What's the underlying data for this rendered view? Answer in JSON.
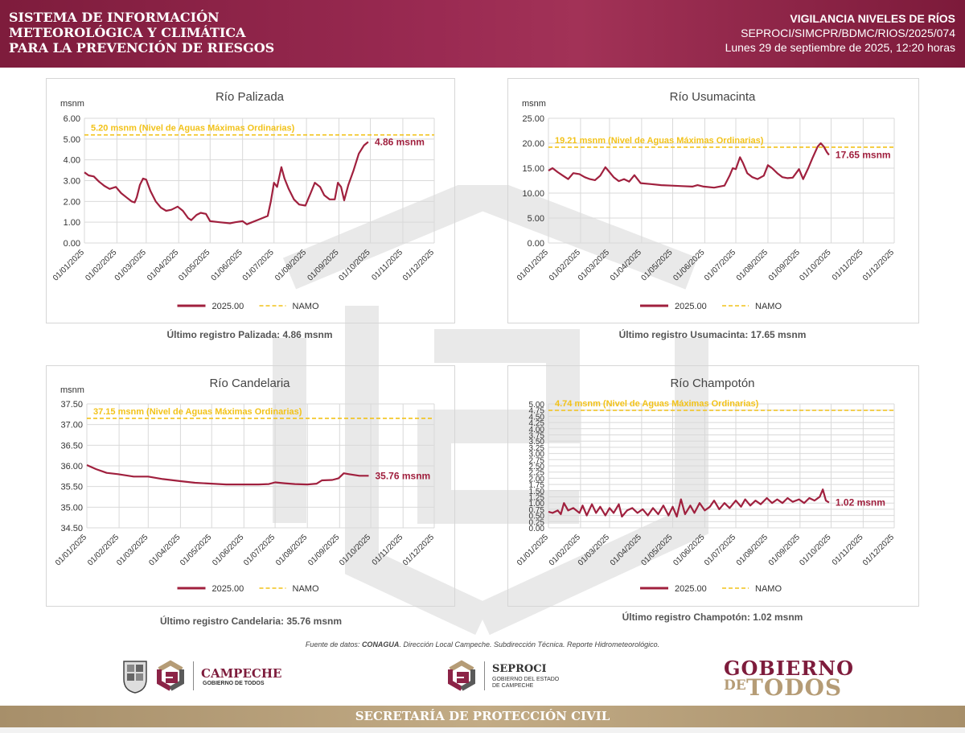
{
  "header": {
    "title_lines": [
      "SISTEMA DE INFORMACIÓN",
      "METEOROLÓGICA Y CLIMÁTICA",
      "PARA LA PREVENCIÓN DE RIESGOS"
    ],
    "report_title": "VIGILANCIA NIVELES DE RÍOS",
    "report_code": "SEPROCI/SIMCPR/BDMC/RIOS/2025/074",
    "report_date": "Lunes 29 de septiembre de 2025, 12:20 horas"
  },
  "colors": {
    "series": "#a0203e",
    "namo": "#f2c219",
    "header": "#8c2347",
    "footer": "#b59c76"
  },
  "chart_data": [
    {
      "type": "line",
      "title": "Río Palizada",
      "ylabel": "msnm",
      "ylim": [
        0,
        6
      ],
      "yticks": [
        0,
        1,
        2,
        3,
        4,
        5,
        6
      ],
      "decimals": 2,
      "x_ticks": [
        "01/01/2025",
        "01/02/2025",
        "01/03/2025",
        "01/04/2025",
        "01/05/2025",
        "01/06/2025",
        "01/07/2025",
        "01/08/2025",
        "01/09/2025",
        "01/10/2025",
        "01/11/2025",
        "01/12/2025"
      ],
      "namo": 5.2,
      "namo_label": "5.20 msnm  (Nivel de Aguas Máximas Ordinarias)",
      "last_label": "4.86 msnm",
      "caption": "Último registro Palizada: 4.86 msnm",
      "legend": [
        "2025.00",
        "NAMO"
      ],
      "series": [
        {
          "name": "2025.00",
          "points": [
            [
              "01/01/2025",
              3.4
            ],
            [
              "05/01/2025",
              3.25
            ],
            [
              "10/01/2025",
              3.2
            ],
            [
              "15/01/2025",
              2.95
            ],
            [
              "20/01/2025",
              2.75
            ],
            [
              "25/01/2025",
              2.6
            ],
            [
              "31/01/2025",
              2.7
            ],
            [
              "05/02/2025",
              2.4
            ],
            [
              "10/02/2025",
              2.2
            ],
            [
              "15/02/2025",
              2.0
            ],
            [
              "18/02/2025",
              1.95
            ],
            [
              "20/02/2025",
              2.2
            ],
            [
              "23/02/2025",
              2.8
            ],
            [
              "26/02/2025",
              3.1
            ],
            [
              "01/03/2025",
              3.05
            ],
            [
              "05/03/2025",
              2.5
            ],
            [
              "10/03/2025",
              2.0
            ],
            [
              "15/03/2025",
              1.7
            ],
            [
              "20/03/2025",
              1.55
            ],
            [
              "25/03/2025",
              1.6
            ],
            [
              "31/03/2025",
              1.75
            ],
            [
              "05/04/2025",
              1.55
            ],
            [
              "10/04/2025",
              1.2
            ],
            [
              "13/04/2025",
              1.1
            ],
            [
              "18/04/2025",
              1.35
            ],
            [
              "22/04/2025",
              1.45
            ],
            [
              "27/04/2025",
              1.4
            ],
            [
              "01/05/2025",
              1.05
            ],
            [
              "10/05/2025",
              1.0
            ],
            [
              "20/05/2025",
              0.95
            ],
            [
              "25/05/2025",
              1.0
            ],
            [
              "01/06/2025",
              1.05
            ],
            [
              "05/06/2025",
              0.9
            ],
            [
              "10/06/2025",
              1.0
            ],
            [
              "15/06/2025",
              1.1
            ],
            [
              "20/06/2025",
              1.2
            ],
            [
              "25/06/2025",
              1.3
            ],
            [
              "28/06/2025",
              2.0
            ],
            [
              "01/07/2025",
              2.9
            ],
            [
              "04/07/2025",
              2.7
            ],
            [
              "08/07/2025",
              3.65
            ],
            [
              "11/07/2025",
              3.1
            ],
            [
              "15/07/2025",
              2.6
            ],
            [
              "20/07/2025",
              2.1
            ],
            [
              "25/07/2025",
              1.85
            ],
            [
              "31/07/2025",
              1.8
            ],
            [
              "05/08/2025",
              2.4
            ],
            [
              "09/08/2025",
              2.9
            ],
            [
              "14/08/2025",
              2.7
            ],
            [
              "18/08/2025",
              2.3
            ],
            [
              "23/08/2025",
              2.1
            ],
            [
              "28/08/2025",
              2.1
            ],
            [
              "31/08/2025",
              2.9
            ],
            [
              "03/09/2025",
              2.7
            ],
            [
              "06/09/2025",
              2.05
            ],
            [
              "10/09/2025",
              2.8
            ],
            [
              "15/09/2025",
              3.5
            ],
            [
              "20/09/2025",
              4.3
            ],
            [
              "25/09/2025",
              4.7
            ],
            [
              "29/09/2025",
              4.86
            ]
          ]
        }
      ]
    },
    {
      "type": "line",
      "title": "Río Usumacinta",
      "ylabel": "msnm",
      "ylim": [
        0,
        25
      ],
      "yticks": [
        0,
        5,
        10,
        15,
        20,
        25
      ],
      "decimals": 2,
      "x_ticks": [
        "01/01/2025",
        "01/02/2025",
        "01/03/2025",
        "01/04/2025",
        "01/05/2025",
        "01/06/2025",
        "01/07/2025",
        "01/08/2025",
        "01/09/2025",
        "01/10/2025",
        "01/11/2025",
        "01/12/2025"
      ],
      "namo": 19.21,
      "namo_label": "19.21 msnm  (Nivel de Aguas Máximas Ordinarias)",
      "last_label": "17.65 msnm",
      "caption": "Último registro Usumacinta: 17.65 msnm",
      "legend": [
        "2025.00",
        "NAMO"
      ],
      "series": [
        {
          "name": "2025.00",
          "points": [
            [
              "01/01/2025",
              14.5
            ],
            [
              "05/01/2025",
              15.0
            ],
            [
              "10/01/2025",
              14.2
            ],
            [
              "15/01/2025",
              13.5
            ],
            [
              "20/01/2025",
              12.8
            ],
            [
              "25/01/2025",
              14.0
            ],
            [
              "31/01/2025",
              13.8
            ],
            [
              "05/02/2025",
              13.2
            ],
            [
              "10/02/2025",
              12.8
            ],
            [
              "15/02/2025",
              12.6
            ],
            [
              "20/02/2025",
              13.5
            ],
            [
              "25/02/2025",
              15.2
            ],
            [
              "01/03/2025",
              14.2
            ],
            [
              "05/03/2025",
              13.2
            ],
            [
              "10/03/2025",
              12.4
            ],
            [
              "15/03/2025",
              12.8
            ],
            [
              "20/03/2025",
              12.3
            ],
            [
              "25/03/2025",
              13.6
            ],
            [
              "31/03/2025",
              12.0
            ],
            [
              "10/04/2025",
              11.8
            ],
            [
              "20/04/2025",
              11.6
            ],
            [
              "30/04/2025",
              11.5
            ],
            [
              "10/05/2025",
              11.4
            ],
            [
              "20/05/2025",
              11.3
            ],
            [
              "25/05/2025",
              11.6
            ],
            [
              "31/05/2025",
              11.3
            ],
            [
              "10/06/2025",
              11.1
            ],
            [
              "20/06/2025",
              11.5
            ],
            [
              "25/06/2025",
              13.5
            ],
            [
              "28/06/2025",
              15.0
            ],
            [
              "01/07/2025",
              14.8
            ],
            [
              "05/07/2025",
              17.2
            ],
            [
              "08/07/2025",
              16.0
            ],
            [
              "12/07/2025",
              14.0
            ],
            [
              "17/07/2025",
              13.2
            ],
            [
              "22/07/2025",
              12.8
            ],
            [
              "28/07/2025",
              13.5
            ],
            [
              "01/08/2025",
              15.6
            ],
            [
              "05/08/2025",
              15.0
            ],
            [
              "10/08/2025",
              14.0
            ],
            [
              "15/08/2025",
              13.2
            ],
            [
              "20/08/2025",
              13.0
            ],
            [
              "25/08/2025",
              13.1
            ],
            [
              "31/08/2025",
              14.8
            ],
            [
              "04/09/2025",
              12.8
            ],
            [
              "09/09/2025",
              15.0
            ],
            [
              "13/09/2025",
              17.0
            ],
            [
              "18/09/2025",
              19.3
            ],
            [
              "21/09/2025",
              20.0
            ],
            [
              "24/09/2025",
              19.3
            ],
            [
              "27/09/2025",
              18.2
            ],
            [
              "29/09/2025",
              17.65
            ]
          ]
        }
      ]
    },
    {
      "type": "line",
      "title": "Río Candelaria",
      "ylabel": "msnm",
      "ylim": [
        34.5,
        37.5
      ],
      "yticks": [
        34.5,
        35,
        35.5,
        36,
        36.5,
        37,
        37.5
      ],
      "decimals": 2,
      "x_ticks": [
        "01/01/2025",
        "01/02/2025",
        "01/03/2025",
        "01/04/2025",
        "01/05/2025",
        "01/06/2025",
        "01/07/2025",
        "01/08/2025",
        "01/09/2025",
        "01/10/2025",
        "01/11/2025",
        "01/12/2025"
      ],
      "namo": 37.15,
      "namo_label": "37.15 msnm  (Nivel de Aguas Máximas Ordinarias)",
      "last_label": "35.76 msnm",
      "caption": "Último registro Candelaria: 35.76 msnm",
      "legend": [
        "2025.00",
        "NAMO"
      ],
      "series": [
        {
          "name": "2025.00",
          "points": [
            [
              "01/01/2025",
              36.02
            ],
            [
              "10/01/2025",
              35.92
            ],
            [
              "20/01/2025",
              35.83
            ],
            [
              "31/01/2025",
              35.8
            ],
            [
              "15/02/2025",
              35.74
            ],
            [
              "01/03/2025",
              35.74
            ],
            [
              "15/03/2025",
              35.68
            ],
            [
              "01/04/2025",
              35.63
            ],
            [
              "15/04/2025",
              35.59
            ],
            [
              "01/05/2025",
              35.57
            ],
            [
              "15/05/2025",
              35.55
            ],
            [
              "01/06/2025",
              35.55
            ],
            [
              "15/06/2025",
              35.55
            ],
            [
              "25/06/2025",
              35.56
            ],
            [
              "01/07/2025",
              35.6
            ],
            [
              "10/07/2025",
              35.58
            ],
            [
              "20/07/2025",
              35.56
            ],
            [
              "01/08/2025",
              35.55
            ],
            [
              "10/08/2025",
              35.57
            ],
            [
              "15/08/2025",
              35.65
            ],
            [
              "25/08/2025",
              35.66
            ],
            [
              "31/08/2025",
              35.7
            ],
            [
              "05/09/2025",
              35.82
            ],
            [
              "10/09/2025",
              35.8
            ],
            [
              "15/09/2025",
              35.78
            ],
            [
              "20/09/2025",
              35.76
            ],
            [
              "29/09/2025",
              35.76
            ]
          ]
        }
      ]
    },
    {
      "type": "line",
      "title": "Río Champotón",
      "ylabel": "",
      "ylim": [
        0,
        5
      ],
      "yticks": [
        0,
        0.25,
        0.5,
        0.75,
        1,
        1.25,
        1.5,
        1.75,
        2,
        2.25,
        2.5,
        2.75,
        3,
        3.25,
        3.5,
        3.75,
        4,
        4.25,
        4.5,
        4.75,
        5
      ],
      "decimals": 2,
      "x_ticks": [
        "01/01/2025",
        "01/02/2025",
        "01/03/2025",
        "01/04/2025",
        "01/05/2025",
        "01/06/2025",
        "01/07/2025",
        "01/08/2025",
        "01/09/2025",
        "01/10/2025",
        "01/11/2025",
        "01/12/2025"
      ],
      "namo": 4.74,
      "namo_label": "4.74 msnm  (Nivel de Aguas Máximas Ordinarias)",
      "last_label": "1.02 msnm",
      "caption": "Último registro Champotón: 1.02 msnm",
      "legend": [
        "2025.00",
        "NAMO"
      ],
      "series": [
        {
          "name": "2025.00",
          "points": [
            [
              "01/01/2025",
              0.65
            ],
            [
              "05/01/2025",
              0.6
            ],
            [
              "10/01/2025",
              0.7
            ],
            [
              "13/01/2025",
              0.55
            ],
            [
              "16/01/2025",
              1.0
            ],
            [
              "20/01/2025",
              0.7
            ],
            [
              "25/01/2025",
              0.8
            ],
            [
              "31/01/2025",
              0.6
            ],
            [
              "03/02/2025",
              0.9
            ],
            [
              "07/02/2025",
              0.5
            ],
            [
              "12/02/2025",
              0.95
            ],
            [
              "16/02/2025",
              0.6
            ],
            [
              "20/02/2025",
              0.85
            ],
            [
              "25/02/2025",
              0.5
            ],
            [
              "01/03/2025",
              0.8
            ],
            [
              "05/03/2025",
              0.6
            ],
            [
              "10/03/2025",
              0.95
            ],
            [
              "13/03/2025",
              0.45
            ],
            [
              "18/03/2025",
              0.7
            ],
            [
              "23/03/2025",
              0.8
            ],
            [
              "28/03/2025",
              0.6
            ],
            [
              "02/04/2025",
              0.75
            ],
            [
              "07/04/2025",
              0.5
            ],
            [
              "12/04/2025",
              0.8
            ],
            [
              "17/04/2025",
              0.55
            ],
            [
              "22/04/2025",
              0.9
            ],
            [
              "27/04/2025",
              0.5
            ],
            [
              "01/05/2025",
              0.85
            ],
            [
              "05/05/2025",
              0.45
            ],
            [
              "09/05/2025",
              1.15
            ],
            [
              "13/05/2025",
              0.55
            ],
            [
              "18/05/2025",
              0.9
            ],
            [
              "22/05/2025",
              0.6
            ],
            [
              "27/05/2025",
              1.0
            ],
            [
              "01/06/2025",
              0.7
            ],
            [
              "06/06/2025",
              0.85
            ],
            [
              "10/06/2025",
              1.1
            ],
            [
              "15/06/2025",
              0.75
            ],
            [
              "20/06/2025",
              1.0
            ],
            [
              "25/06/2025",
              0.8
            ],
            [
              "01/07/2025",
              1.1
            ],
            [
              "06/07/2025",
              0.85
            ],
            [
              "10/07/2025",
              1.15
            ],
            [
              "15/07/2025",
              0.9
            ],
            [
              "20/07/2025",
              1.1
            ],
            [
              "25/07/2025",
              0.95
            ],
            [
              "31/07/2025",
              1.2
            ],
            [
              "05/08/2025",
              1.0
            ],
            [
              "10/08/2025",
              1.15
            ],
            [
              "15/08/2025",
              1.0
            ],
            [
              "20/08/2025",
              1.2
            ],
            [
              "25/08/2025",
              1.05
            ],
            [
              "31/08/2025",
              1.15
            ],
            [
              "05/09/2025",
              1.0
            ],
            [
              "10/09/2025",
              1.2
            ],
            [
              "15/09/2025",
              1.1
            ],
            [
              "20/09/2025",
              1.25
            ],
            [
              "23/09/2025",
              1.55
            ],
            [
              "26/09/2025",
              1.1
            ],
            [
              "29/09/2025",
              1.02
            ]
          ]
        }
      ]
    }
  ],
  "source": {
    "prefix": "Fuente de datos: ",
    "org": "CONAGUA",
    "rest": ". Dirección Local Campeche. Subdirección Técnica. Reporte Hidrometeorológico."
  },
  "logos": {
    "campeche_name": "CAMPECHE",
    "campeche_sub": "GOBIERNO DE TODOS",
    "seproci_name": "SEPROCI",
    "seproci_sub1": "GOBIERNO DEL ESTADO",
    "seproci_sub2": "DE CAMPECHE",
    "gob_line1": "GOBIERNO",
    "gob_line2a": "DE",
    "gob_line2b": "TODOS"
  },
  "footer": {
    "label": "SECRETARÍA DE PROTECCIÓN CIVIL"
  }
}
